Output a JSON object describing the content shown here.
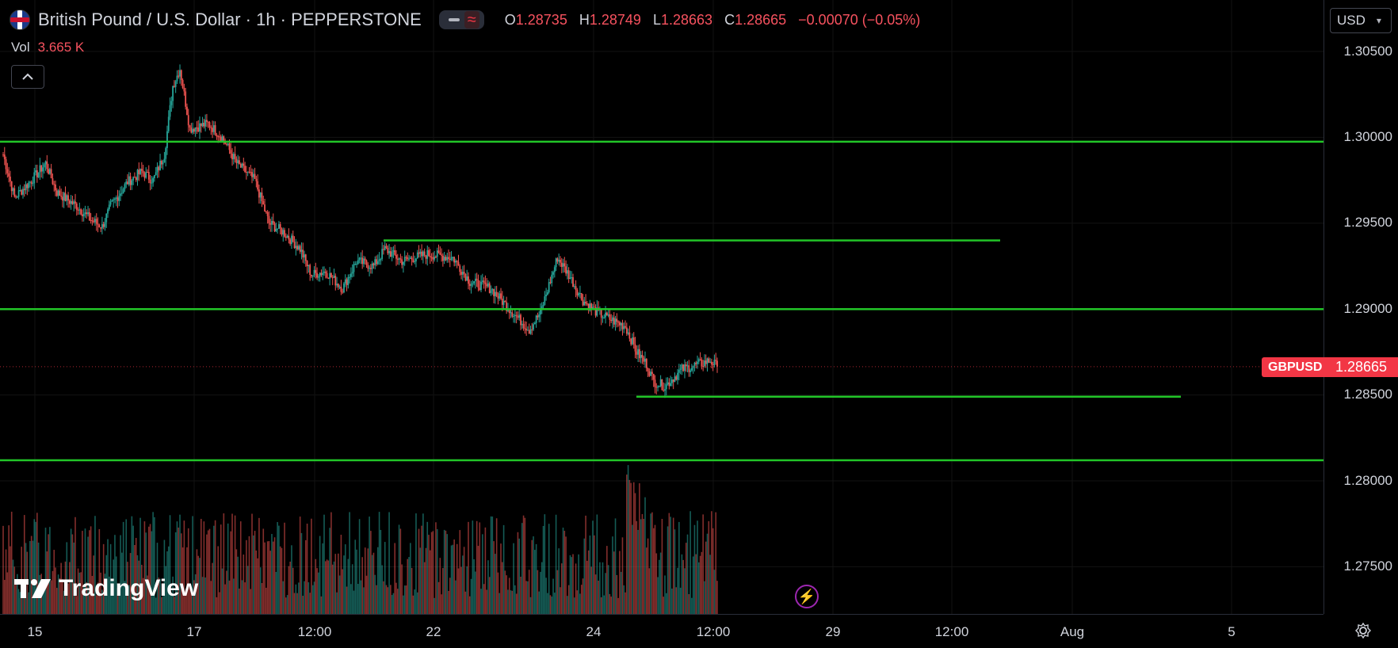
{
  "header": {
    "title": "British Pound / U.S. Dollar · 1h · PEPPERSTONE",
    "open_key": "O",
    "open": "1.28735",
    "high_key": "H",
    "high": "1.28749",
    "low_key": "L",
    "low": "1.28663",
    "close_key": "C",
    "close": "1.28665",
    "change": "−0.00070 (−0.05%)"
  },
  "volume": {
    "label": "Vol",
    "value": "3.665 K"
  },
  "currency_selector": {
    "value": "USD"
  },
  "price_axis": {
    "ticks": [
      "1.30500",
      "1.30000",
      "1.29500",
      "1.29000",
      "1.28500",
      "1.28000",
      "1.27500"
    ]
  },
  "time_axis": {
    "ticks": [
      "15",
      "17",
      "12:00",
      "22",
      "24",
      "12:00",
      "29",
      "12:00",
      "Aug",
      "5"
    ]
  },
  "last_price": {
    "symbol": "GBPUSD",
    "price": "1.28665"
  },
  "brand": {
    "name": "TradingView"
  },
  "colors": {
    "up": "#26a69a",
    "down": "#ef5350",
    "level_line": "#22c528",
    "label_bg": "#f23645"
  },
  "chart_data": {
    "type": "candlestick",
    "symbol": "GBPUSD",
    "interval": "1h",
    "ylim": [
      1.2725,
      1.3065
    ],
    "horizontal_levels": [
      1.29975,
      1.294,
      1.29,
      1.2849,
      1.2812
    ],
    "candles_summary": {
      "start_open": 1.299,
      "high": 1.3045,
      "low": 1.2845,
      "last_close": 1.28665
    }
  }
}
